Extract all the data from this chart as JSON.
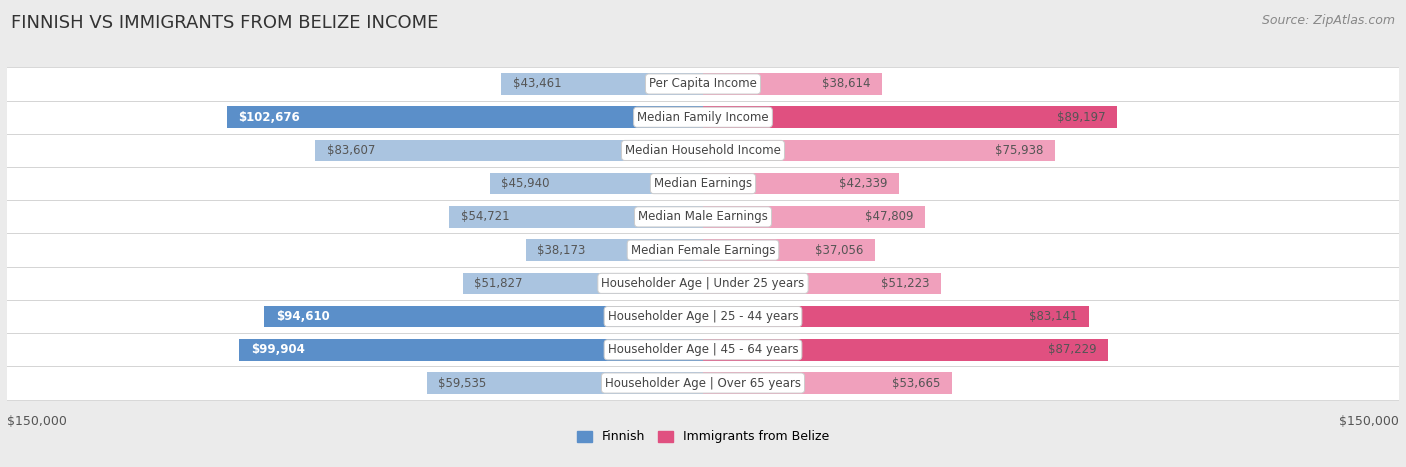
{
  "title": "FINNISH VS IMMIGRANTS FROM BELIZE INCOME",
  "source": "Source: ZipAtlas.com",
  "categories": [
    "Per Capita Income",
    "Median Family Income",
    "Median Household Income",
    "Median Earnings",
    "Median Male Earnings",
    "Median Female Earnings",
    "Householder Age | Under 25 years",
    "Householder Age | 25 - 44 years",
    "Householder Age | 45 - 64 years",
    "Householder Age | Over 65 years"
  ],
  "finnish_values": [
    43461,
    102676,
    83607,
    45940,
    54721,
    38173,
    51827,
    94610,
    99904,
    59535
  ],
  "belize_values": [
    38614,
    89197,
    75938,
    42339,
    47809,
    37056,
    51223,
    83141,
    87229,
    53665
  ],
  "finnish_labels": [
    "$43,461",
    "$102,676",
    "$83,607",
    "$45,940",
    "$54,721",
    "$38,173",
    "$51,827",
    "$94,610",
    "$99,904",
    "$59,535"
  ],
  "belize_labels": [
    "$38,614",
    "$89,197",
    "$75,938",
    "$42,339",
    "$47,809",
    "$37,056",
    "$51,223",
    "$83,141",
    "$87,229",
    "$53,665"
  ],
  "max_value": 150000,
  "finnish_color_dark": "#5b8fc9",
  "finnish_color_light": "#aac4e0",
  "belize_color_dark": "#e05080",
  "belize_color_light": "#f0a0bc",
  "bg_color": "#ebebeb",
  "row_bg_white": "#ffffff",
  "row_bg_light": "#f5f5f5",
  "x_label_left": "$150,000",
  "x_label_right": "$150,000",
  "legend_finnish": "Finnish",
  "legend_belize": "Immigrants from Belize",
  "title_fontsize": 13,
  "source_fontsize": 9,
  "bar_fontsize": 8.5,
  "cat_fontsize": 8.5,
  "finnish_dark_rows": [
    1,
    7,
    8
  ],
  "belize_dark_rows": [
    1,
    7,
    8
  ]
}
